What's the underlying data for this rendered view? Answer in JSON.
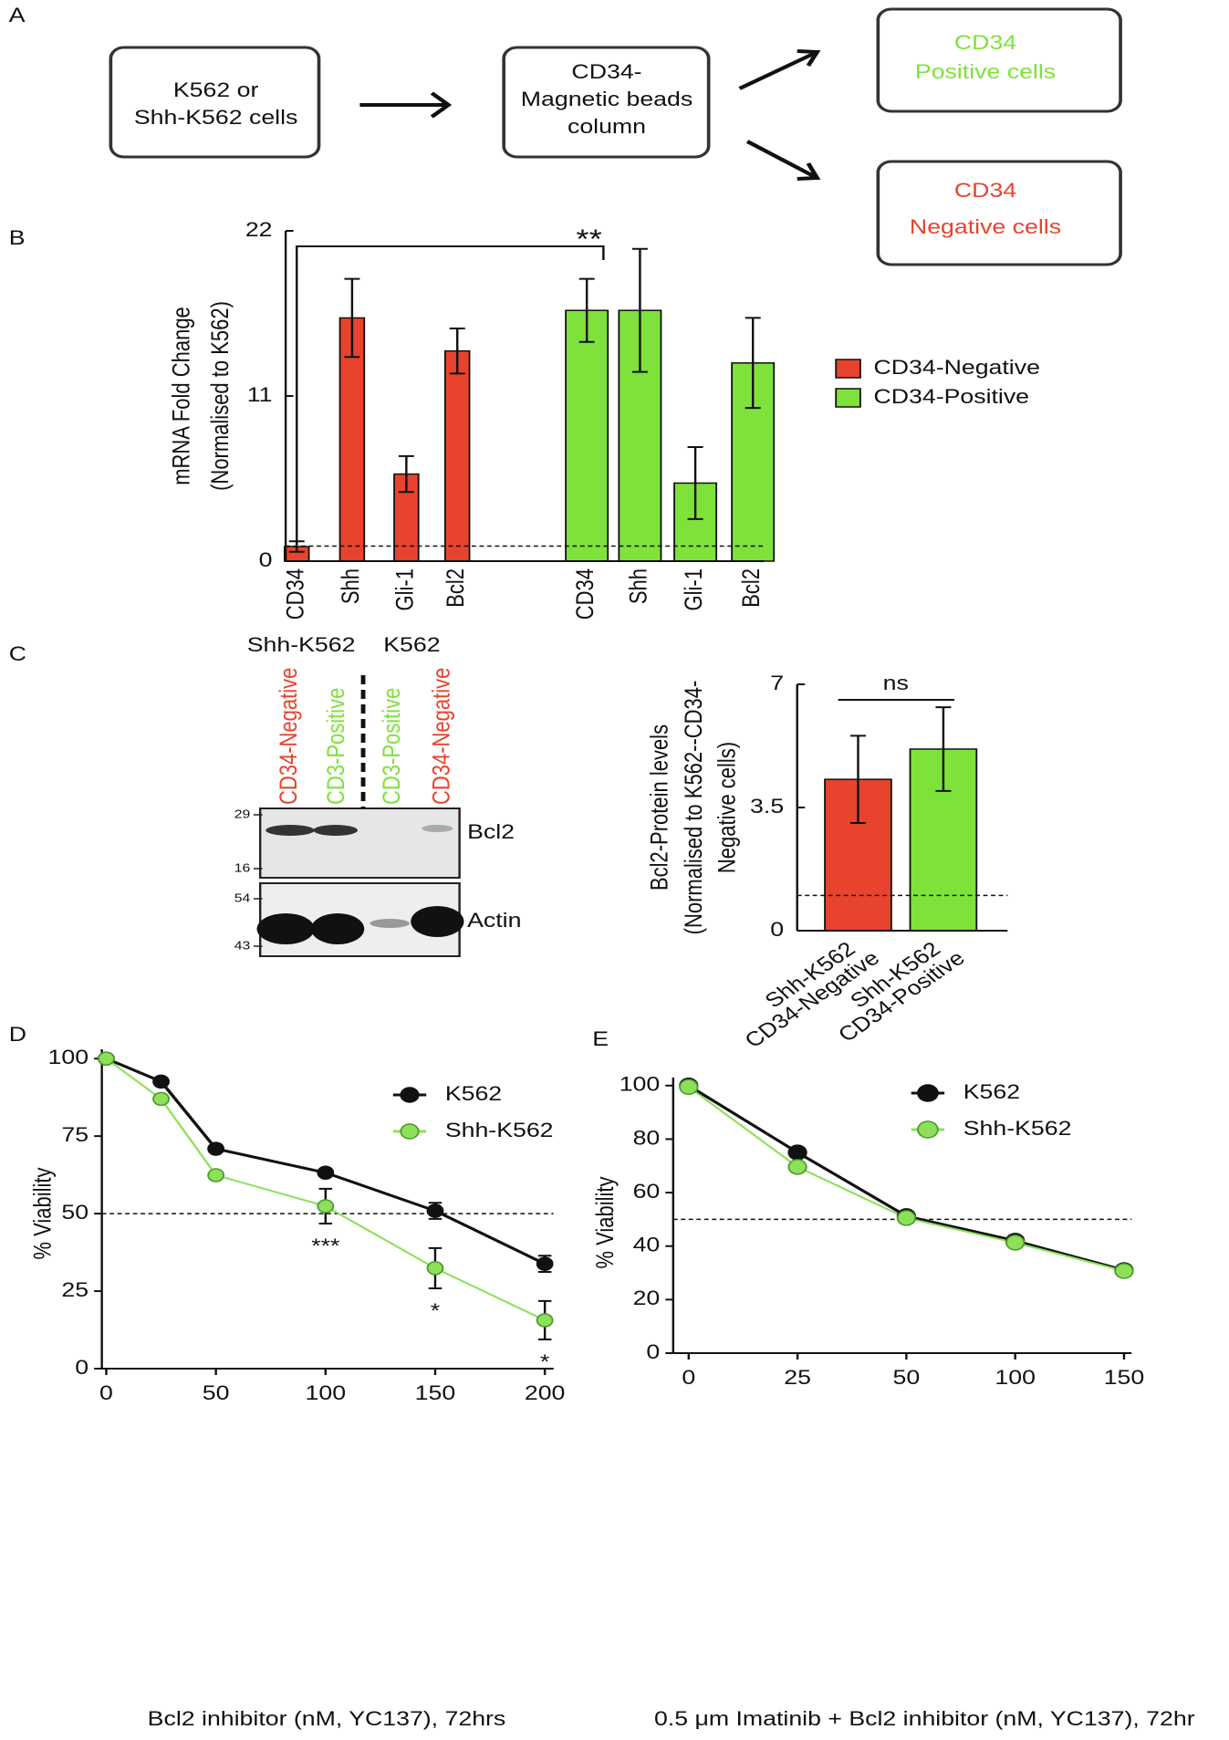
{
  "panel_labels": [
    "A",
    "B",
    "C",
    "D",
    "E"
  ],
  "diagram": {
    "nodes": [
      {
        "lines": [
          "K562 or",
          "Shh-K562 cells"
        ],
        "color": "#111111"
      },
      {
        "lines": [
          "CD34-",
          "Magnetic beads",
          "column"
        ],
        "color": "#111111"
      },
      {
        "lines": [
          "CD34",
          "Positive cells"
        ],
        "color": "#7ee23a"
      },
      {
        "lines": [
          "CD34",
          "Negative cells"
        ],
        "color": "#e8432d"
      }
    ]
  },
  "blot": {
    "groups": [
      "Shh-K562",
      "K562"
    ],
    "lanes": [
      {
        "label": "CD34-Negative",
        "color": "#e8432d"
      },
      {
        "label": "CD3-Positive",
        "color": "#7ee23a"
      },
      {
        "label": "CD3-Positive",
        "color": "#7ee23a"
      },
      {
        "label": "CD34-Negative",
        "color": "#e8432d"
      }
    ],
    "panels": [
      {
        "name": "Bcl2",
        "markers": [
          "29",
          "16"
        ]
      },
      {
        "name": "Actin",
        "markers": [
          "54",
          "43"
        ]
      }
    ]
  },
  "chart_data": [
    {
      "type": "bar",
      "ylabel": [
        "mRNA Fold Change",
        "(Normalised to K562)"
      ],
      "categories": [
        "CD34",
        "Shh",
        "Gli-1",
        "Bcl2"
      ],
      "series": [
        {
          "name": "CD34-Negative",
          "color": "#e8432d",
          "values": [
            0.97,
            16.2,
            5.8,
            14.0
          ],
          "errors": [
            0.35,
            2.6,
            1.2,
            1.5
          ]
        },
        {
          "name": "CD34-Positive",
          "color": "#7ee23a",
          "values": [
            16.7,
            16.7,
            5.2,
            13.2
          ],
          "errors": [
            2.1,
            4.1,
            2.4,
            3.0
          ]
        }
      ],
      "ylim": [
        0,
        22
      ],
      "yticks": [
        0,
        11,
        22
      ],
      "reference_line": 1,
      "annotation": "**"
    },
    {
      "type": "bar",
      "ylabel": [
        "Bcl2-Protein levels",
        "(Normalised to K562--CD34-",
        "Negative cells)"
      ],
      "categories": [
        [
          "Shh-K562",
          "CD34-Negative"
        ],
        [
          "Shh-K562",
          "CD34-Positive"
        ]
      ],
      "colors": [
        "#e8432d",
        "#7ee23a"
      ],
      "values": [
        4.3,
        5.16
      ],
      "errors": [
        1.24,
        1.19
      ],
      "ylim": [
        0,
        7
      ],
      "yticks": [
        0,
        3.5,
        7
      ],
      "reference_line": 1,
      "annotation": "ns"
    },
    {
      "type": "line",
      "xlabel": "Bcl2 inhibitor (nM, YC137), 72hrs",
      "ylabel": "% Viability",
      "x": [
        0,
        25,
        50,
        100,
        150,
        200
      ],
      "series": [
        {
          "name": "K562",
          "color": "#111111",
          "values": [
            100,
            92.6,
            70.9,
            63.2,
            50.9,
            33.8
          ],
          "errors": [
            0.6,
            0.8,
            0.6,
            0.6,
            2.6,
            2.6
          ]
        },
        {
          "name": "Shh-K562",
          "color": "#8ee05a",
          "values": [
            100,
            87,
            62.4,
            52.4,
            32.4,
            15.6
          ],
          "errors": [
            0.6,
            1.0,
            1.0,
            5.6,
            6.5,
            6.2
          ]
        }
      ],
      "xlim": [
        -2,
        204
      ],
      "xticks": [
        0,
        50,
        100,
        150,
        200
      ],
      "ylim": [
        0,
        103
      ],
      "yticks": [
        0,
        25,
        50,
        75,
        100
      ],
      "reference_line": 50,
      "annotations": [
        {
          "x": 100,
          "text": "***"
        },
        {
          "x": 150,
          "text": "*"
        },
        {
          "x": 200,
          "text": "*"
        }
      ]
    },
    {
      "type": "line",
      "xlabel": "0.5 μm Imatinib + Bcl2 inhibitor (nM, YC137), 72hr",
      "ylabel": "% Viability",
      "categories": [
        "0",
        "25",
        "50",
        "100",
        "150"
      ],
      "series": [
        {
          "name": "K562",
          "color": "#111111",
          "values": [
            100,
            75,
            51.2,
            42,
            31
          ],
          "errors": [
            1.5,
            1.2,
            1.5,
            1.8,
            1.5
          ]
        },
        {
          "name": "Shh-K562",
          "color": "#8ee05a",
          "values": [
            99.5,
            69.6,
            50.5,
            41.3,
            30.7
          ],
          "errors": [
            1.5,
            1.2,
            1.2,
            1.5,
            1.2
          ]
        }
      ],
      "ylim": [
        0,
        103
      ],
      "yticks": [
        0,
        20,
        40,
        60,
        80,
        100
      ],
      "reference_line": 50
    }
  ]
}
